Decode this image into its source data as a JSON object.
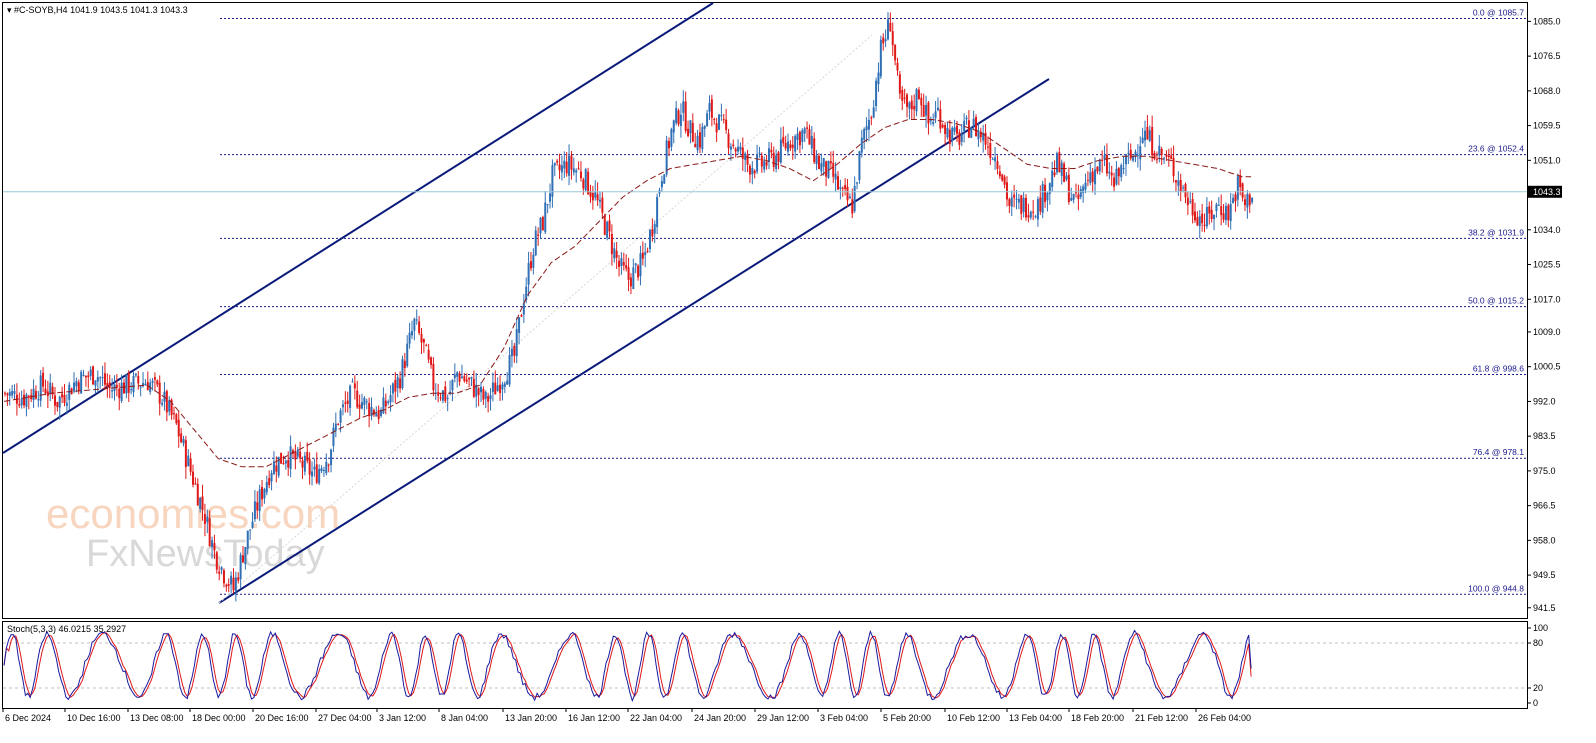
{
  "header": {
    "symbol_label": "#C-SOYB,H4",
    "ohlc": "1041.9 1043.5 1041.3 1043.3"
  },
  "watermark": {
    "line1": "economies.com",
    "line2": "FxNewsToday"
  },
  "colors": {
    "bull": "#2f6fb5",
    "bear": "#e01818",
    "ma": "#8b1a1a",
    "channel": "#0a1a7a",
    "fib": "#1a1a8c",
    "price_line": "#9cc8d8",
    "stoch_main": "#1a1aa0",
    "stoch_signal": "#e01818"
  },
  "chart_data": {
    "type": "candlestick",
    "y_range": [
      939.0,
      1089.5
    ],
    "price_ticks": [
      "1085.0",
      "1076.5",
      "1068.0",
      "1059.5",
      "1051.0",
      "1043.3",
      "1034.0",
      "1025.5",
      "1017.0",
      "1009.0",
      "1000.5",
      "992.0",
      "983.5",
      "975.0",
      "966.5",
      "958.0",
      "949.5",
      "941.5"
    ],
    "current_price": 1043.3,
    "x_labels": [
      "6 Dec 2024",
      "10 Dec 16:00",
      "13 Dec 08:00",
      "18 Dec 00:00",
      "20 Dec 16:00",
      "27 Dec 04:00",
      "3 Jan 12:00",
      "8 Jan 04:00",
      "13 Jan 20:00",
      "16 Jan 12:00",
      "22 Jan 04:00",
      "24 Jan 20:00",
      "29 Jan 12:00",
      "3 Feb 04:00",
      "5 Feb 20:00",
      "10 Feb 12:00",
      "13 Feb 04:00",
      "18 Feb 20:00",
      "21 Feb 12:00",
      "26 Feb 04:00"
    ],
    "fibonacci": [
      {
        "label": "0.0 @ 1085.7",
        "price": 1085.7
      },
      {
        "label": "23.6 @ 1052.4",
        "price": 1052.4
      },
      {
        "label": "38.2 @ 1031.9",
        "price": 1031.9
      },
      {
        "label": "50.0 @ 1015.2",
        "price": 1015.2
      },
      {
        "label": "61.8 @ 998.6",
        "price": 998.6
      },
      {
        "label": "76.4 @ 978.1",
        "price": 978.1
      },
      {
        "label": "100.0 @ 944.8",
        "price": 944.8
      }
    ],
    "close_path": [
      [
        0,
        994
      ],
      [
        8,
        993
      ],
      [
        16,
        996
      ],
      [
        22,
        992
      ],
      [
        30,
        997
      ],
      [
        38,
        999
      ],
      [
        44,
        995
      ],
      [
        52,
        996
      ],
      [
        60,
        997
      ],
      [
        66,
        993
      ],
      [
        72,
        986
      ],
      [
        78,
        975
      ],
      [
        84,
        964
      ],
      [
        88,
        955
      ],
      [
        92,
        950
      ],
      [
        96,
        946
      ],
      [
        100,
        955
      ],
      [
        104,
        963
      ],
      [
        108,
        970
      ],
      [
        112,
        976
      ],
      [
        118,
        979
      ],
      [
        124,
        977
      ],
      [
        130,
        974
      ],
      [
        136,
        979
      ],
      [
        140,
        988
      ],
      [
        146,
        994
      ],
      [
        152,
        991
      ],
      [
        158,
        989
      ],
      [
        166,
        998
      ],
      [
        172,
        1011
      ],
      [
        176,
        1005
      ],
      [
        180,
        996
      ],
      [
        186,
        993
      ],
      [
        190,
        999
      ],
      [
        196,
        996
      ],
      [
        202,
        992
      ],
      [
        208,
        997
      ],
      [
        214,
        1003
      ],
      [
        218,
        1018
      ],
      [
        222,
        1030
      ],
      [
        226,
        1036
      ],
      [
        230,
        1047
      ],
      [
        236,
        1050
      ],
      [
        242,
        1048
      ],
      [
        248,
        1042
      ],
      [
        254,
        1032
      ],
      [
        258,
        1025
      ],
      [
        262,
        1022
      ],
      [
        268,
        1026
      ],
      [
        272,
        1035
      ],
      [
        276,
        1048
      ],
      [
        280,
        1058
      ],
      [
        284,
        1064
      ],
      [
        288,
        1058
      ],
      [
        292,
        1056
      ],
      [
        296,
        1063
      ],
      [
        300,
        1060
      ],
      [
        306,
        1055
      ],
      [
        312,
        1050
      ],
      [
        318,
        1050
      ],
      [
        324,
        1052
      ],
      [
        330,
        1056
      ],
      [
        336,
        1058
      ],
      [
        342,
        1050
      ],
      [
        348,
        1047
      ],
      [
        352,
        1042
      ],
      [
        356,
        1040
      ],
      [
        360,
        1055
      ],
      [
        364,
        1063
      ],
      [
        368,
        1078
      ],
      [
        372,
        1085
      ],
      [
        376,
        1065
      ],
      [
        380,
        1063
      ],
      [
        384,
        1068
      ],
      [
        388,
        1060
      ],
      [
        392,
        1063
      ],
      [
        396,
        1058
      ],
      [
        400,
        1056
      ],
      [
        406,
        1060
      ],
      [
        412,
        1056
      ],
      [
        418,
        1050
      ],
      [
        422,
        1040
      ],
      [
        428,
        1040
      ],
      [
        434,
        1040
      ],
      [
        438,
        1045
      ],
      [
        442,
        1050
      ],
      [
        446,
        1045
      ],
      [
        450,
        1040
      ],
      [
        456,
        1048
      ],
      [
        462,
        1050
      ],
      [
        466,
        1045
      ],
      [
        470,
        1050
      ],
      [
        474,
        1052
      ],
      [
        478,
        1058
      ],
      [
        482,
        1055
      ],
      [
        486,
        1052
      ],
      [
        490,
        1050
      ],
      [
        494,
        1045
      ],
      [
        498,
        1040
      ],
      [
        504,
        1036
      ],
      [
        510,
        1040
      ],
      [
        514,
        1038
      ],
      [
        518,
        1045
      ],
      [
        521,
        1040
      ],
      [
        524,
        1043.3
      ]
    ],
    "ma_path": [
      [
        0,
        992
      ],
      [
        20,
        994
      ],
      [
        40,
        995
      ],
      [
        60,
        996
      ],
      [
        70,
        992
      ],
      [
        80,
        985
      ],
      [
        90,
        978
      ],
      [
        100,
        976
      ],
      [
        110,
        976
      ],
      [
        120,
        979
      ],
      [
        130,
        982
      ],
      [
        140,
        985
      ],
      [
        150,
        988
      ],
      [
        160,
        990
      ],
      [
        170,
        993
      ],
      [
        180,
        994
      ],
      [
        190,
        994
      ],
      [
        200,
        996
      ],
      [
        210,
        1005
      ],
      [
        220,
        1018
      ],
      [
        230,
        1026
      ],
      [
        240,
        1030
      ],
      [
        250,
        1036
      ],
      [
        260,
        1042
      ],
      [
        270,
        1046
      ],
      [
        280,
        1049
      ],
      [
        290,
        1050
      ],
      [
        300,
        1051
      ],
      [
        310,
        1052
      ],
      [
        320,
        1051
      ],
      [
        330,
        1049
      ],
      [
        340,
        1046
      ],
      [
        350,
        1050
      ],
      [
        360,
        1055
      ],
      [
        370,
        1059
      ],
      [
        380,
        1061
      ],
      [
        390,
        1061
      ],
      [
        400,
        1060
      ],
      [
        410,
        1058
      ],
      [
        420,
        1054
      ],
      [
        430,
        1050
      ],
      [
        440,
        1049
      ],
      [
        450,
        1049
      ],
      [
        460,
        1051
      ],
      [
        470,
        1052
      ],
      [
        480,
        1052
      ],
      [
        490,
        1051
      ],
      [
        500,
        1050
      ],
      [
        510,
        1049
      ],
      [
        520,
        1047
      ],
      [
        524,
        1047
      ]
    ],
    "channel_lines": [
      {
        "name": "upper",
        "p1": [
          0,
          982
        ],
        "p2": [
          300,
          1089.5
        ]
      },
      {
        "name": "lower",
        "p1": [
          92,
          944.8
        ],
        "p2": [
          440,
          1074
        ]
      },
      {
        "name": "upper_tail",
        "p1": [
          0,
          982
        ],
        "p2": [
          300,
          1089.5
        ]
      }
    ],
    "stochastic": {
      "label": "Stoch(5,3,3) 46.0215 35.2927",
      "k": 46.0215,
      "d": 35.2927,
      "range": [
        0,
        100
      ],
      "ticks": [
        "100",
        "80",
        "20",
        "0"
      ],
      "levels": [
        80,
        20
      ]
    }
  }
}
